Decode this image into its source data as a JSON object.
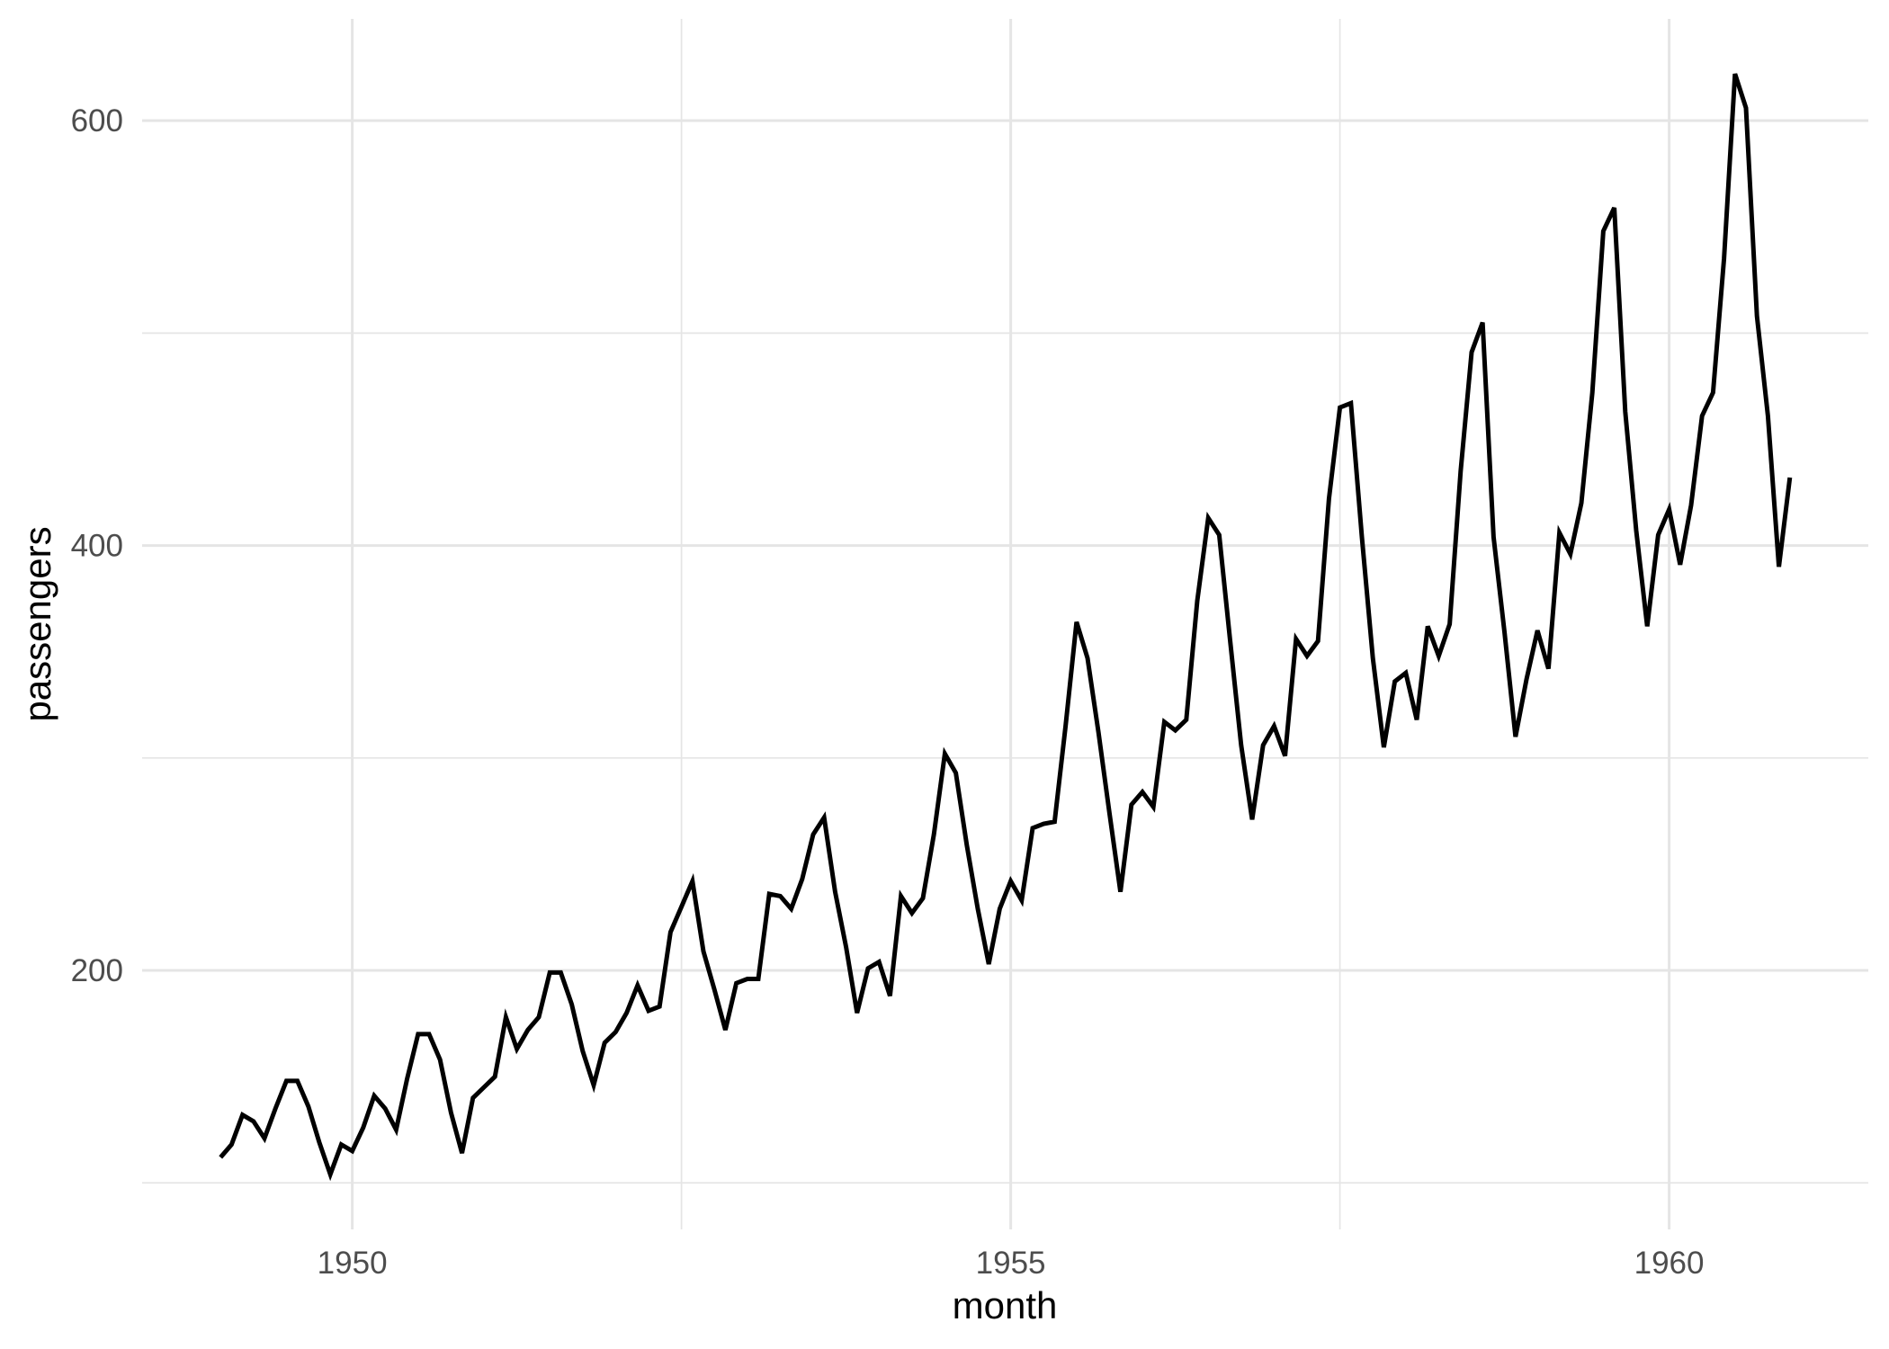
{
  "chart_data": {
    "type": "line",
    "title": "",
    "xlabel": "month",
    "ylabel": "passengers",
    "series": [
      {
        "name": "passengers",
        "x_start_year": 1949,
        "points_per_year": 12,
        "values": [
          112,
          118,
          132,
          129,
          121,
          135,
          148,
          148,
          136,
          119,
          104,
          118,
          115,
          126,
          141,
          135,
          125,
          149,
          170,
          170,
          158,
          133,
          114,
          140,
          145,
          150,
          178,
          163,
          172,
          178,
          199,
          199,
          184,
          162,
          146,
          166,
          171,
          180,
          193,
          181,
          183,
          218,
          230,
          242,
          209,
          191,
          172,
          194,
          196,
          196,
          236,
          235,
          229,
          243,
          264,
          272,
          237,
          211,
          180,
          201,
          204,
          188,
          235,
          227,
          234,
          264,
          302,
          293,
          259,
          229,
          203,
          229,
          242,
          233,
          267,
          269,
          270,
          315,
          364,
          347,
          312,
          274,
          237,
          278,
          284,
          277,
          317,
          313,
          318,
          374,
          413,
          405,
          355,
          306,
          271,
          306,
          315,
          301,
          356,
          348,
          355,
          422,
          465,
          467,
          404,
          347,
          305,
          336,
          340,
          318,
          362,
          348,
          363,
          435,
          491,
          505,
          404,
          359,
          310,
          337,
          360,
          342,
          406,
          396,
          420,
          472,
          548,
          559,
          463,
          407,
          362,
          405,
          417,
          391,
          419,
          461,
          472,
          535,
          622,
          606,
          508,
          461,
          390,
          432
        ]
      }
    ],
    "x_ticks": [
      {
        "value": 1950,
        "label": "1950"
      },
      {
        "value": 1955,
        "label": "1955"
      },
      {
        "value": 1960,
        "label": "1960"
      }
    ],
    "y_ticks": [
      {
        "value": 200,
        "label": "200"
      },
      {
        "value": 400,
        "label": "400"
      },
      {
        "value": 600,
        "label": "600"
      }
    ],
    "x_minor_breaks": [
      1952.5,
      1957.5
    ],
    "y_minor_breaks": [
      100,
      300,
      500
    ],
    "xlim": [
      1948.4042,
      1961.5125
    ],
    "ylim": [
      78.1,
      647.9
    ],
    "grid": true,
    "legend_position": "none",
    "colors": {
      "line": "#000000",
      "grid_major": "#e5e5e5",
      "grid_minor": "#e5e5e5",
      "tick_label": "#4d4d4d",
      "axis_title": "#000000",
      "background": "#ffffff"
    }
  }
}
